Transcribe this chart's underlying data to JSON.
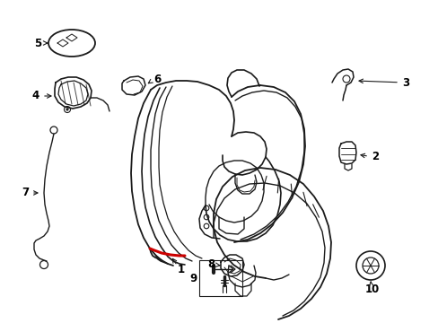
{
  "bg_color": "#ffffff",
  "line_color": "#1a1a1a",
  "red_color": "#cc0000",
  "label_color": "#000000",
  "figsize": [
    4.89,
    3.6
  ],
  "dpi": 100
}
